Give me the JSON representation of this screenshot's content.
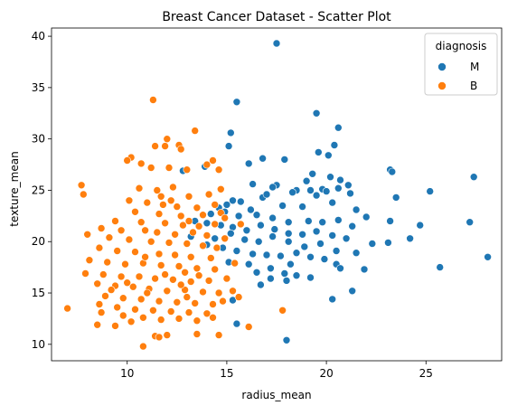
{
  "chart_data": {
    "type": "scatter",
    "title": "Breast Cancer Dataset - Scatter Plot",
    "xlabel": "radius_mean",
    "ylabel": "texture_mean",
    "xlim": [
      6.2,
      28.8
    ],
    "ylim": [
      8.4,
      40.8
    ],
    "xticks": [
      10,
      15,
      20,
      25
    ],
    "yticks": [
      10,
      15,
      20,
      25,
      30,
      35,
      40
    ],
    "grid": false,
    "legend": {
      "title": "diagnosis",
      "placement": "top-right"
    },
    "series": [
      {
        "name": "M",
        "color": "#1f77b4",
        "points": [
          [
            17.5,
            39.3
          ],
          [
            15.5,
            33.6
          ],
          [
            19.5,
            32.5
          ],
          [
            20.6,
            31.1
          ],
          [
            15.2,
            30.6
          ],
          [
            20.4,
            29.4
          ],
          [
            15.1,
            29.3
          ],
          [
            20.1,
            28.4
          ],
          [
            19.6,
            28.7
          ],
          [
            16.8,
            28.1
          ],
          [
            13.9,
            27.3
          ],
          [
            16.1,
            27.6
          ],
          [
            23.2,
            27.0
          ],
          [
            23.3,
            26.8
          ],
          [
            27.4,
            26.3
          ],
          [
            17.9,
            28.0
          ],
          [
            19.3,
            26.6
          ],
          [
            20.7,
            26.0
          ],
          [
            12.8,
            26.9
          ],
          [
            20.2,
            26.3
          ],
          [
            21.1,
            25.5
          ],
          [
            19.0,
            25.9
          ],
          [
            17.5,
            25.5
          ],
          [
            17.3,
            25.3
          ],
          [
            16.8,
            24.3
          ],
          [
            18.5,
            25.0
          ],
          [
            19.2,
            25.0
          ],
          [
            19.8,
            25.1
          ],
          [
            20.6,
            25.2
          ],
          [
            21.2,
            24.7
          ],
          [
            20.0,
            24.9
          ],
          [
            17.0,
            24.6
          ],
          [
            16.3,
            25.6
          ],
          [
            15.3,
            24.0
          ],
          [
            15.7,
            23.9
          ],
          [
            18.3,
            24.8
          ],
          [
            19.5,
            24.5
          ],
          [
            25.2,
            24.9
          ],
          [
            23.5,
            24.3
          ],
          [
            15.0,
            23.6
          ],
          [
            14.6,
            23.3
          ],
          [
            16.2,
            23.1
          ],
          [
            17.8,
            23.5
          ],
          [
            18.8,
            23.4
          ],
          [
            20.3,
            23.8
          ],
          [
            21.5,
            23.1
          ],
          [
            22.0,
            22.4
          ],
          [
            23.2,
            22.0
          ],
          [
            24.7,
            21.6
          ],
          [
            27.2,
            21.9
          ],
          [
            14.2,
            22.7
          ],
          [
            14.9,
            22.9
          ],
          [
            15.6,
            22.5
          ],
          [
            16.5,
            22.6
          ],
          [
            17.3,
            22.3
          ],
          [
            18.1,
            21.9
          ],
          [
            19.1,
            22.0
          ],
          [
            19.8,
            21.9
          ],
          [
            20.6,
            22.1
          ],
          [
            21.3,
            21.5
          ],
          [
            13.4,
            22.0
          ],
          [
            14.0,
            21.8
          ],
          [
            14.7,
            21.6
          ],
          [
            15.3,
            21.4
          ],
          [
            16.0,
            21.1
          ],
          [
            16.7,
            21.6
          ],
          [
            17.4,
            21.2
          ],
          [
            18.1,
            20.8
          ],
          [
            18.8,
            20.7
          ],
          [
            19.5,
            21.0
          ],
          [
            20.3,
            20.6
          ],
          [
            21.0,
            20.3
          ],
          [
            22.3,
            19.8
          ],
          [
            23.1,
            19.9
          ],
          [
            24.2,
            20.3
          ],
          [
            14.4,
            20.3
          ],
          [
            15.2,
            20.8
          ],
          [
            15.9,
            20.2
          ],
          [
            16.6,
            20.0
          ],
          [
            17.3,
            20.5
          ],
          [
            18.1,
            20.0
          ],
          [
            18.9,
            19.5
          ],
          [
            19.7,
            19.8
          ],
          [
            20.5,
            19.1
          ],
          [
            21.5,
            18.9
          ],
          [
            13.2,
            20.5
          ],
          [
            14.0,
            19.7
          ],
          [
            14.8,
            19.4
          ],
          [
            15.5,
            19.1
          ],
          [
            16.3,
            18.8
          ],
          [
            17.0,
            18.7
          ],
          [
            17.7,
            18.6
          ],
          [
            18.5,
            18.9
          ],
          [
            19.2,
            18.5
          ],
          [
            19.9,
            18.3
          ],
          [
            15.1,
            18.0
          ],
          [
            16.1,
            17.8
          ],
          [
            17.2,
            17.4
          ],
          [
            18.2,
            17.8
          ],
          [
            20.5,
            17.8
          ],
          [
            20.7,
            17.4
          ],
          [
            21.9,
            17.3
          ],
          [
            25.7,
            17.5
          ],
          [
            28.1,
            18.5
          ],
          [
            16.5,
            17.0
          ],
          [
            17.9,
            16.9
          ],
          [
            18.5,
            16.7
          ],
          [
            19.2,
            16.5
          ],
          [
            21.3,
            15.2
          ],
          [
            16.7,
            15.8
          ],
          [
            18.0,
            16.2
          ],
          [
            17.2,
            16.4
          ],
          [
            20.3,
            14.4
          ],
          [
            15.3,
            14.3
          ],
          [
            15.5,
            12.0
          ],
          [
            18.0,
            10.4
          ]
        ]
      },
      {
        "name": "B",
        "color": "#ff7f0e",
        "points": [
          [
            11.3,
            33.8
          ],
          [
            13.4,
            30.8
          ],
          [
            12.0,
            30.0
          ],
          [
            12.6,
            29.4
          ],
          [
            11.4,
            29.3
          ],
          [
            11.9,
            29.3
          ],
          [
            12.7,
            29.0
          ],
          [
            10.2,
            28.2
          ],
          [
            10.0,
            27.9
          ],
          [
            10.7,
            27.6
          ],
          [
            12.1,
            27.2
          ],
          [
            11.2,
            27.2
          ],
          [
            14.3,
            27.9
          ],
          [
            14.0,
            27.5
          ],
          [
            14.6,
            27.0
          ],
          [
            13.0,
            27.0
          ],
          [
            7.7,
            25.5
          ],
          [
            7.8,
            24.6
          ],
          [
            11.5,
            25.0
          ],
          [
            10.6,
            25.2
          ],
          [
            12.3,
            25.3
          ],
          [
            13.1,
            24.4
          ],
          [
            14.1,
            24.6
          ],
          [
            14.7,
            25.1
          ],
          [
            11.7,
            24.4
          ],
          [
            10.1,
            24.0
          ],
          [
            11.0,
            23.8
          ],
          [
            11.8,
            23.6
          ],
          [
            12.5,
            23.4
          ],
          [
            13.5,
            23.3
          ],
          [
            14.4,
            23.6
          ],
          [
            10.4,
            22.9
          ],
          [
            11.6,
            22.7
          ],
          [
            12.7,
            22.5
          ],
          [
            13.8,
            22.6
          ],
          [
            14.7,
            22.8
          ],
          [
            9.4,
            22.0
          ],
          [
            10.7,
            21.9
          ],
          [
            11.9,
            21.8
          ],
          [
            12.8,
            21.6
          ],
          [
            13.6,
            21.5
          ],
          [
            14.4,
            21.7
          ],
          [
            8.7,
            21.3
          ],
          [
            9.7,
            21.1
          ],
          [
            10.9,
            21.1
          ],
          [
            11.5,
            20.9
          ],
          [
            12.4,
            20.7
          ],
          [
            13.3,
            20.9
          ],
          [
            14.0,
            20.6
          ],
          [
            14.9,
            20.3
          ],
          [
            8.0,
            20.7
          ],
          [
            9.1,
            20.4
          ],
          [
            10.1,
            20.2
          ],
          [
            11.2,
            20.0
          ],
          [
            12.1,
            19.9
          ],
          [
            13.0,
            19.8
          ],
          [
            13.8,
            19.6
          ],
          [
            14.5,
            19.4
          ],
          [
            8.6,
            19.4
          ],
          [
            9.5,
            19.1
          ],
          [
            10.4,
            19.0
          ],
          [
            11.6,
            18.8
          ],
          [
            12.4,
            18.7
          ],
          [
            13.2,
            18.5
          ],
          [
            14.2,
            18.4
          ],
          [
            8.1,
            18.2
          ],
          [
            9.0,
            18.0
          ],
          [
            9.9,
            17.8
          ],
          [
            10.8,
            17.9
          ],
          [
            11.7,
            17.7
          ],
          [
            12.6,
            17.6
          ],
          [
            13.5,
            17.4
          ],
          [
            14.4,
            17.3
          ],
          [
            7.9,
            16.9
          ],
          [
            8.8,
            16.8
          ],
          [
            9.7,
            16.6
          ],
          [
            10.6,
            16.6
          ],
          [
            11.4,
            16.4
          ],
          [
            12.3,
            16.3
          ],
          [
            13.2,
            16.1
          ],
          [
            14.1,
            16.2
          ],
          [
            15.0,
            16.4
          ],
          [
            8.5,
            15.9
          ],
          [
            9.4,
            15.7
          ],
          [
            10.3,
            15.6
          ],
          [
            11.1,
            15.4
          ],
          [
            12.0,
            15.2
          ],
          [
            12.9,
            15.3
          ],
          [
            13.8,
            15.1
          ],
          [
            14.6,
            15.0
          ],
          [
            8.9,
            14.7
          ],
          [
            9.8,
            14.5
          ],
          [
            10.7,
            14.4
          ],
          [
            11.6,
            14.2
          ],
          [
            12.5,
            14.1
          ],
          [
            13.4,
            14.0
          ],
          [
            14.3,
            13.9
          ],
          [
            8.6,
            13.9
          ],
          [
            9.5,
            13.6
          ],
          [
            10.4,
            13.4
          ],
          [
            11.3,
            13.3
          ],
          [
            12.2,
            13.2
          ],
          [
            13.1,
            13.1
          ],
          [
            14.0,
            13.0
          ],
          [
            7.0,
            13.5
          ],
          [
            8.7,
            13.1
          ],
          [
            9.8,
            12.8
          ],
          [
            10.8,
            12.6
          ],
          [
            11.7,
            12.4
          ],
          [
            12.6,
            12.5
          ],
          [
            13.5,
            12.3
          ],
          [
            14.3,
            12.6
          ],
          [
            8.5,
            11.9
          ],
          [
            9.4,
            11.8
          ],
          [
            10.2,
            12.2
          ],
          [
            11.4,
            10.8
          ],
          [
            11.6,
            10.7
          ],
          [
            12.0,
            10.9
          ],
          [
            13.5,
            11.0
          ],
          [
            14.6,
            10.9
          ],
          [
            10.8,
            9.8
          ],
          [
            16.1,
            11.7
          ],
          [
            17.8,
            13.3
          ],
          [
            15.3,
            15.2
          ],
          [
            15.6,
            14.6
          ],
          [
            15.4,
            17.9
          ],
          [
            15.7,
            21.7
          ],
          [
            14.9,
            22.3
          ],
          [
            13.1,
            22.0
          ],
          [
            12.2,
            24.0
          ],
          [
            10.9,
            18.5
          ],
          [
            12.9,
            17.0
          ],
          [
            11.9,
            16.8
          ],
          [
            13.6,
            16.7
          ],
          [
            10.0,
            16.0
          ],
          [
            12.7,
            15.8
          ],
          [
            11.0,
            15.0
          ],
          [
            13.0,
            14.6
          ],
          [
            9.2,
            15.3
          ],
          [
            14.8,
            14.2
          ]
        ]
      }
    ]
  }
}
